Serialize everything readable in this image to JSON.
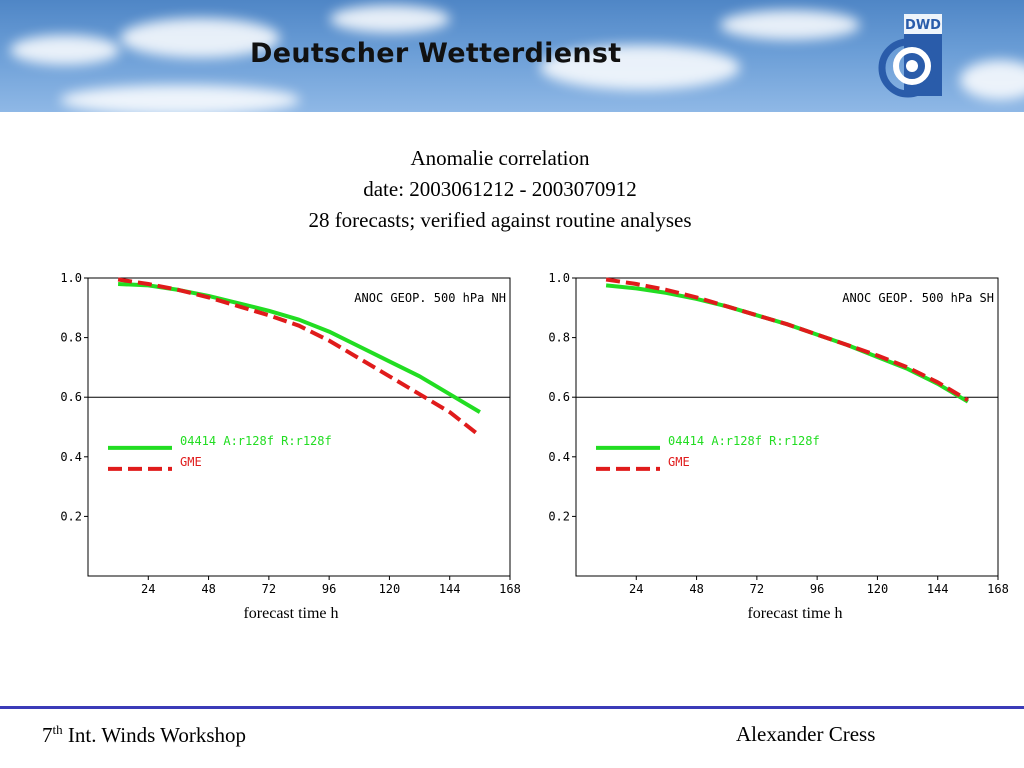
{
  "header": {
    "brand": "Deutscher Wetterdienst",
    "logo_text": "DWD",
    "logo_color": "#2a5caa"
  },
  "title": {
    "line1": "Anomalie correlation",
    "line2": "date: 2003061212 - 2003070912",
    "line3": "28 forecasts; verified against routine analyses"
  },
  "footer": {
    "left_num": "7",
    "left_sup": "th",
    "left_rest": " Int. Winds Workshop",
    "right": "Alexander Cress"
  },
  "chart_data": [
    {
      "type": "line",
      "title": "ANOC GEOP. 500 hPa NH",
      "xlabel": "forecast time h",
      "xlim": [
        0,
        168
      ],
      "ylim": [
        0,
        1.0
      ],
      "xticks": [
        24,
        48,
        72,
        96,
        120,
        144,
        168
      ],
      "yticks": [
        0.2,
        0.4,
        0.6,
        0.8,
        1.0
      ],
      "reference_line": 0.6,
      "series": [
        {
          "name": "04414  A:r128f R:r128f",
          "color": "#22dd22",
          "dash": "solid",
          "x": [
            12,
            24,
            36,
            48,
            60,
            72,
            84,
            96,
            108,
            120,
            132,
            144,
            156
          ],
          "y": [
            0.98,
            0.975,
            0.96,
            0.94,
            0.915,
            0.89,
            0.86,
            0.82,
            0.77,
            0.72,
            0.67,
            0.61,
            0.55
          ]
        },
        {
          "name": "GME",
          "color": "#e01b1b",
          "dash": "dashed",
          "x": [
            12,
            24,
            36,
            48,
            60,
            72,
            84,
            96,
            108,
            120,
            132,
            144,
            156
          ],
          "y": [
            0.995,
            0.98,
            0.96,
            0.935,
            0.905,
            0.875,
            0.84,
            0.79,
            0.73,
            0.67,
            0.61,
            0.55,
            0.47
          ]
        }
      ]
    },
    {
      "type": "line",
      "title": "ANOC GEOP. 500 hPa SH",
      "xlabel": "forecast time h",
      "xlim": [
        0,
        168
      ],
      "ylim": [
        0,
        1.0
      ],
      "xticks": [
        24,
        48,
        72,
        96,
        120,
        144,
        168
      ],
      "yticks": [
        0.2,
        0.4,
        0.6,
        0.8,
        1.0
      ],
      "reference_line": 0.6,
      "series": [
        {
          "name": "04414  A:r128f R:r128f",
          "color": "#22dd22",
          "dash": "solid",
          "x": [
            12,
            24,
            36,
            48,
            60,
            72,
            84,
            96,
            108,
            120,
            132,
            144,
            156
          ],
          "y": [
            0.975,
            0.965,
            0.95,
            0.93,
            0.905,
            0.875,
            0.845,
            0.81,
            0.775,
            0.735,
            0.695,
            0.645,
            0.585
          ]
        },
        {
          "name": "GME",
          "color": "#e01b1b",
          "dash": "dashed",
          "x": [
            12,
            24,
            36,
            48,
            60,
            72,
            84,
            96,
            108,
            120,
            132,
            144,
            156
          ],
          "y": [
            0.995,
            0.98,
            0.96,
            0.935,
            0.905,
            0.875,
            0.845,
            0.81,
            0.775,
            0.74,
            0.7,
            0.65,
            0.59
          ]
        }
      ]
    }
  ]
}
